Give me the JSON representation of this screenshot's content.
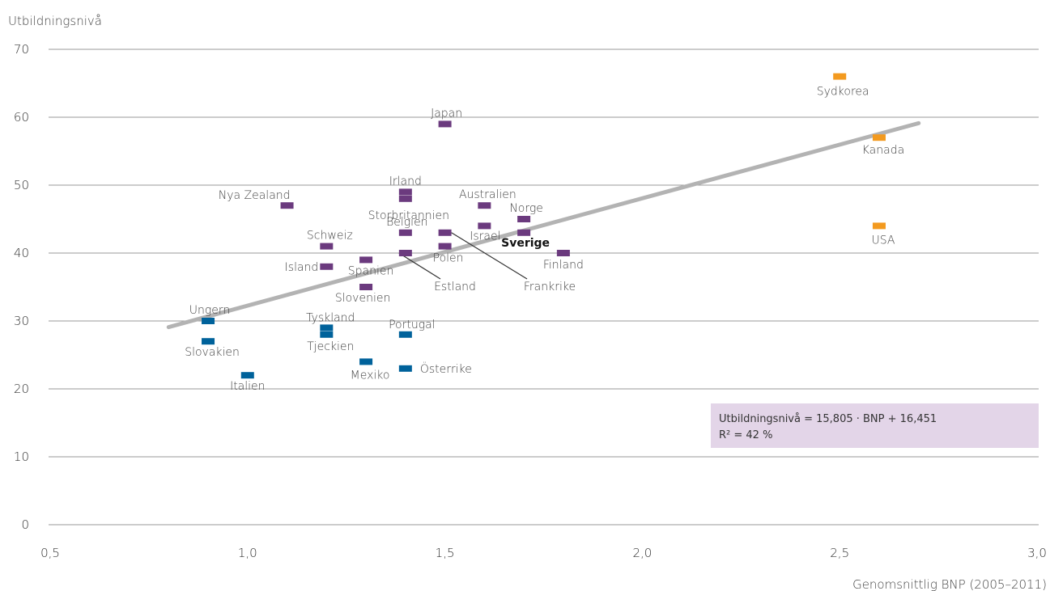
{
  "chart_data": {
    "type": "scatter",
    "ylabel": "Utbildningsnivå",
    "xlabel": "Genomsnittlig BNP (2005–2011)",
    "xlim": [
      0.5,
      3.0
    ],
    "ylim": [
      0,
      70
    ],
    "x_ticks": [
      "0,5",
      "1,0",
      "1,5",
      "2,0",
      "2,5",
      "3,0"
    ],
    "y_ticks": [
      "0",
      "10",
      "20",
      "30",
      "40",
      "50",
      "60",
      "70"
    ],
    "grid": "horizontal",
    "colors": {
      "blue": "#00629b",
      "purple": "#6b3a7e",
      "orange": "#f39a1f",
      "trend": "#b3b3b3",
      "box": "#e3d5e8"
    },
    "points": [
      {
        "label": "Sydkorea",
        "x": 2.5,
        "y": 66,
        "group": "orange"
      },
      {
        "label": "Kanada",
        "x": 2.6,
        "y": 57,
        "group": "orange"
      },
      {
        "label": "USA",
        "x": 2.6,
        "y": 44,
        "group": "orange"
      },
      {
        "label": "Japan",
        "x": 1.5,
        "y": 59,
        "group": "purple"
      },
      {
        "label": "Irland",
        "x": 1.4,
        "y": 49,
        "group": "purple"
      },
      {
        "label": "Storbritannien",
        "x": 1.4,
        "y": 48,
        "group": "purple"
      },
      {
        "label": "Nya Zealand",
        "x": 1.1,
        "y": 47,
        "group": "purple"
      },
      {
        "label": "Australien",
        "x": 1.6,
        "y": 47,
        "group": "purple"
      },
      {
        "label": "Norge",
        "x": 1.7,
        "y": 45,
        "group": "purple"
      },
      {
        "label": "Israel",
        "x": 1.6,
        "y": 44,
        "group": "purple"
      },
      {
        "label": "Belgien",
        "x": 1.4,
        "y": 43,
        "group": "purple"
      },
      {
        "label": "Frankrike",
        "x": 1.5,
        "y": 43,
        "group": "purple"
      },
      {
        "label": "Sverige",
        "x": 1.7,
        "y": 43,
        "group": "purple",
        "bold": true
      },
      {
        "label": "Schweiz",
        "x": 1.2,
        "y": 41,
        "group": "purple"
      },
      {
        "label": "Polen",
        "x": 1.5,
        "y": 41,
        "group": "purple"
      },
      {
        "label": "Estland",
        "x": 1.4,
        "y": 40,
        "group": "purple"
      },
      {
        "label": "Finland",
        "x": 1.8,
        "y": 40,
        "group": "purple"
      },
      {
        "label": "Spanien",
        "x": 1.3,
        "y": 39,
        "group": "purple"
      },
      {
        "label": "Island",
        "x": 1.2,
        "y": 38,
        "group": "purple"
      },
      {
        "label": "Slovenien",
        "x": 1.3,
        "y": 35,
        "group": "purple"
      },
      {
        "label": "Ungern",
        "x": 0.9,
        "y": 30,
        "group": "blue"
      },
      {
        "label": "Tyskland",
        "x": 1.2,
        "y": 29,
        "group": "blue"
      },
      {
        "label": "Tjeckien",
        "x": 1.2,
        "y": 28,
        "group": "blue"
      },
      {
        "label": "Portugal",
        "x": 1.4,
        "y": 28,
        "group": "blue"
      },
      {
        "label": "Slovakien",
        "x": 0.9,
        "y": 27,
        "group": "blue"
      },
      {
        "label": "Mexiko",
        "x": 1.3,
        "y": 24,
        "group": "blue"
      },
      {
        "label": "Österrike",
        "x": 1.4,
        "y": 23,
        "group": "blue"
      },
      {
        "label": "Italien",
        "x": 1.0,
        "y": 22,
        "group": "blue"
      }
    ],
    "trendline": {
      "slope": 15.805,
      "intercept": 16.451,
      "x_range": [
        0.8,
        2.7
      ]
    },
    "annotation": {
      "line1": "Utbildningsnivå = 15,805 · BNP + 16,451",
      "line2": "R² = 42 %"
    }
  }
}
